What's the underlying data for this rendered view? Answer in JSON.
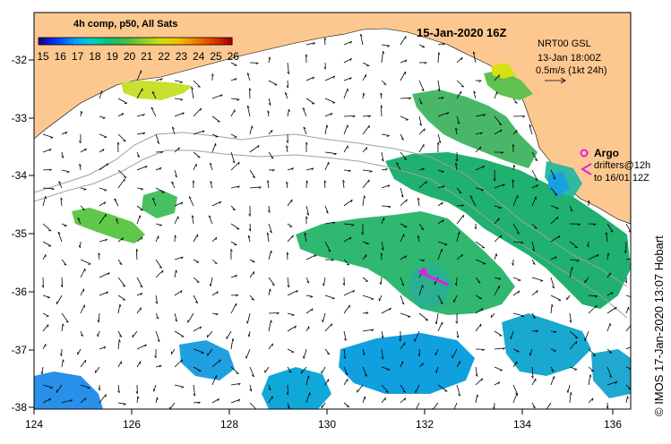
{
  "title": "15-Jan-2020 16Z",
  "colorbar": {
    "title": "4h comp, p50, All Sats",
    "ticks": [
      "15",
      "16",
      "17",
      "18",
      "19",
      "20",
      "21",
      "22",
      "23",
      "24",
      "25",
      "26"
    ],
    "colors": [
      "#1a00a0",
      "#0040ff",
      "#00a0ff",
      "#00d0c0",
      "#10c070",
      "#40c040",
      "#90d020",
      "#d0e010",
      "#f0c000",
      "#f08000",
      "#e04000",
      "#b00000"
    ]
  },
  "info": {
    "line1": "NRT00 GSL",
    "line2": "13-Jan 18:00Z",
    "line3": "0.5m/s (1kt 24h)"
  },
  "legend": {
    "argo": "Argo",
    "drifters": "drifters@12h",
    "drifters_to": "to 16/01 12Z"
  },
  "credit": "© IMOS 17-Jan-2020 13:07 Hobart",
  "axes": {
    "lat_labels": [
      "-32",
      "-33",
      "-34",
      "-35",
      "-36",
      "-37",
      "-38"
    ],
    "lon_labels": [
      "124",
      "126",
      "128",
      "130",
      "132",
      "134",
      "136"
    ]
  },
  "colors": {
    "land": "#fcc890",
    "frame": "#000000",
    "drifter": "#e020e0",
    "bathy": "#a0a0a0"
  }
}
